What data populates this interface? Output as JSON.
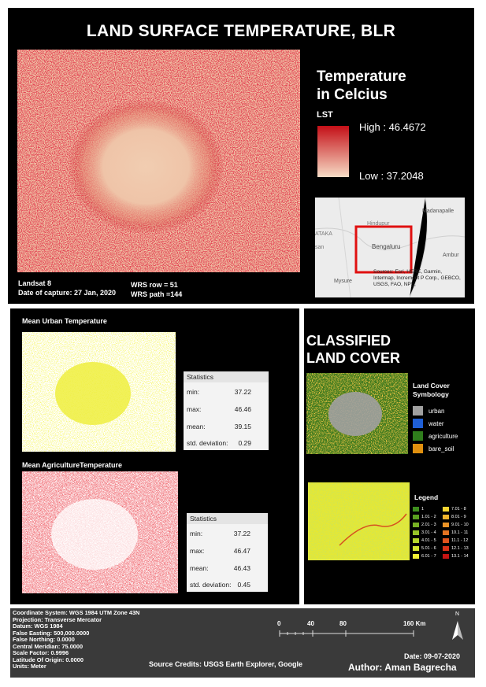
{
  "main_title": "LAND SURFACE TEMPERATURE, BLR",
  "legend": {
    "title_line1": "Temperature",
    "title_line2": "in Celcius",
    "field": "LST",
    "high_label": "High : 46.4672",
    "low_label": "Low : 37.2048",
    "high_color": "#c40f17",
    "low_color": "#f7dcc6"
  },
  "capture": {
    "satellite": "Landsat 8",
    "date": "Date of capture: 27 Jan, 2020",
    "wrs_row": "WRS row = 51",
    "wrs_path": "WRS path =144"
  },
  "inset_map": {
    "place_labels": [
      "Madanapalle",
      "Bengaluru",
      "Mysure",
      "Ambur",
      "ATAKA",
      "san",
      "Hindupur"
    ],
    "credits": "Sources: Esri, HERE, Garmin, Intermap, Increment P Corp., GEBCO, USGS, FAO, NPS,"
  },
  "urban": {
    "title": "Mean Urban Temperature",
    "stats_title": "Statistics",
    "rows": [
      {
        "label": "min:",
        "value": "37.22"
      },
      {
        "label": "max:",
        "value": "46.46"
      },
      {
        "label": "mean:",
        "value": "39.15"
      },
      {
        "label": "std. deviation:",
        "value": "0.29"
      }
    ]
  },
  "agri": {
    "title": "Mean AgricultureTemperature",
    "stats_title": "Statistics",
    "rows": [
      {
        "label": "min:",
        "value": "37.22"
      },
      {
        "label": "max:",
        "value": "46.47"
      },
      {
        "label": "mean:",
        "value": "46.43"
      },
      {
        "label": "std. deviation:",
        "value": "0.45"
      }
    ]
  },
  "land_cover": {
    "title_line1": "CLASSIFIED",
    "title_line2": "LAND COVER",
    "symbology_title_line1": "Land Cover",
    "symbology_title_line2": "Symbology",
    "classes": [
      {
        "label": "urban",
        "color": "#a0a0a0"
      },
      {
        "label": "water",
        "color": "#1f5fd6"
      },
      {
        "label": "agriculture",
        "color": "#2f7d1c"
      },
      {
        "label": "bare_soil",
        "color": "#e0900f"
      }
    ]
  },
  "ndvi_legend": {
    "title": "Legend",
    "col1": [
      {
        "label": "1",
        "color": "#3e8e1e"
      },
      {
        "label": "1.01 - 2",
        "color": "#5aa020"
      },
      {
        "label": "2.01 - 3",
        "color": "#78b124"
      },
      {
        "label": "3.01 - 4",
        "color": "#96c328"
      },
      {
        "label": "4.01 - 5",
        "color": "#b4d52c"
      },
      {
        "label": "5.01 - 6",
        "color": "#d2e630"
      },
      {
        "label": "6.01 - 7",
        "color": "#f0f034"
      }
    ],
    "col2": [
      {
        "label": "7.01 - 8",
        "color": "#f5d531"
      },
      {
        "label": "8.01 - 9",
        "color": "#f0b42c"
      },
      {
        "label": "9.01 - 10",
        "color": "#eb9427"
      },
      {
        "label": "10.1 - 11",
        "color": "#e57322"
      },
      {
        "label": "11.1 - 12",
        "color": "#df531d"
      },
      {
        "label": "12.1 - 13",
        "color": "#d93218"
      },
      {
        "label": "13.1 - 14",
        "color": "#c41413"
      }
    ]
  },
  "footer": {
    "meta": [
      "Coordinate System: WGS 1984 UTM Zone 43N",
      "Projection: Transverse Mercator",
      "Datum: WGS 1984",
      "False Easting: 500,000.0000",
      "False Northing: 0.0000",
      "Central Meridian: 75.0000",
      "Scale Factor: 0.9996",
      "Latitude Of Origin: 0.0000",
      "Units: Meter"
    ],
    "scale_ticks": [
      "0",
      "40",
      "80",
      "160 Km"
    ],
    "north": "N",
    "credits": "Source Credits: USGS Earth Explorer, Google",
    "date": "Date: 09-07-2020",
    "author": "Author: Aman Bagrecha"
  }
}
